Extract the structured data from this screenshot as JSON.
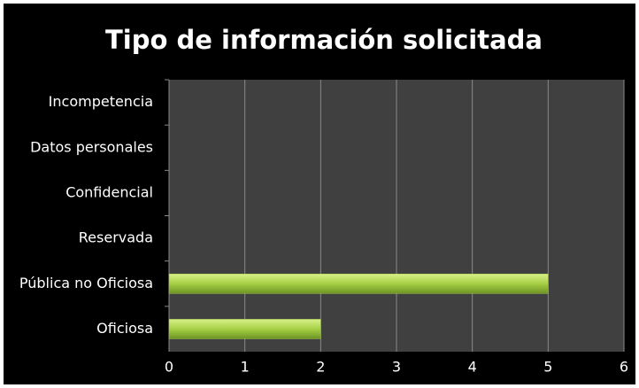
{
  "chart_data": {
    "type": "bar",
    "orientation": "horizontal",
    "title": "Tipo de información solicitada",
    "categories": [
      "Incompetencia",
      "Datos personales",
      "Confidencial",
      "Reservada",
      "Pública no Oficiosa",
      "Oficiosa"
    ],
    "values": [
      0,
      0,
      0,
      0,
      5,
      2
    ],
    "color": "#a6d045",
    "xlim": [
      0,
      6
    ],
    "xticks": [
      0,
      1,
      2,
      3,
      4,
      5,
      6
    ],
    "grid": true
  }
}
